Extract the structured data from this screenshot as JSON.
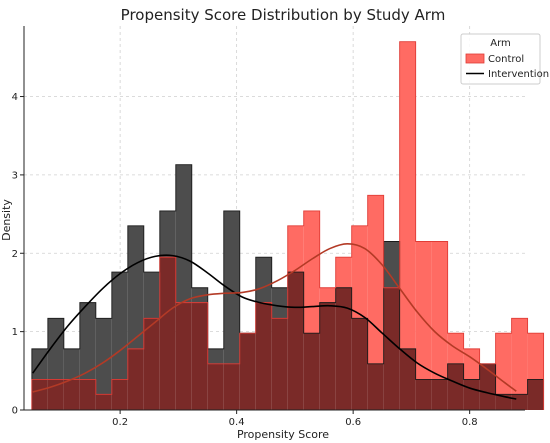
{
  "chart_data": {
    "type": "histogram",
    "title": "Propensity Score Distribution by Study Arm",
    "xlabel": "Propensity Score",
    "ylabel": "Density",
    "xlim": [
      0.035,
      0.895
    ],
    "ylim": [
      0,
      4.9
    ],
    "x_ticks": [
      0.2,
      0.4,
      0.6,
      0.8
    ],
    "y_ticks": [
      0,
      1,
      2,
      3,
      4
    ],
    "grid": true,
    "legend": {
      "title": "Arm",
      "placement": "top-right",
      "entries": [
        {
          "label": "Control",
          "kind": "patch"
        },
        {
          "label": "Intervention",
          "kind": "line"
        }
      ]
    },
    "bin_start": 0.0485,
    "bin_width": 0.02745,
    "series": [
      {
        "name": "Control",
        "color": "#ff6b63",
        "edge": "#e03c36",
        "kde_color": "#b33a26",
        "values": [
          0.39,
          0.39,
          0.39,
          0.39,
          0.2,
          0.39,
          0.78,
          1.17,
          1.95,
          1.37,
          1.37,
          0.59,
          0.59,
          0.98,
          1.37,
          1.17,
          2.35,
          2.54,
          1.56,
          1.95,
          2.35,
          2.74,
          1.56,
          4.7,
          2.15,
          2.15,
          0.98,
          0.78,
          0.59,
          0.98,
          1.17,
          0.98
        ]
      },
      {
        "name": "Intervention",
        "color": "#4d4d4d",
        "edge": "#1a1a1a",
        "kde_color": "#000000",
        "values": [
          0.78,
          1.17,
          0.78,
          1.37,
          1.17,
          1.76,
          2.35,
          1.76,
          2.54,
          3.13,
          1.56,
          0.78,
          2.54,
          0.98,
          1.95,
          1.56,
          1.76,
          0.98,
          1.37,
          1.56,
          1.17,
          0.59,
          2.15,
          0.78,
          0.39,
          0.39,
          0.59,
          0.39,
          0.59,
          0.2,
          0.2,
          0.39
        ]
      }
    ],
    "overlap_color": "#7a2a28",
    "kde": [
      {
        "name": "Intervention",
        "x": [
          0.05,
          0.08,
          0.11,
          0.14,
          0.17,
          0.2,
          0.23,
          0.26,
          0.29,
          0.32,
          0.35,
          0.38,
          0.41,
          0.44,
          0.47,
          0.5,
          0.53,
          0.56,
          0.59,
          0.62,
          0.65,
          0.68,
          0.71,
          0.74,
          0.77,
          0.8,
          0.83,
          0.86,
          0.88
        ],
        "y": [
          0.47,
          0.78,
          1.07,
          1.32,
          1.55,
          1.74,
          1.88,
          1.96,
          1.97,
          1.9,
          1.75,
          1.58,
          1.44,
          1.37,
          1.33,
          1.31,
          1.32,
          1.33,
          1.3,
          1.18,
          0.98,
          0.78,
          0.6,
          0.47,
          0.37,
          0.28,
          0.22,
          0.17,
          0.14
        ]
      },
      {
        "name": "Control",
        "x": [
          0.05,
          0.08,
          0.11,
          0.14,
          0.17,
          0.2,
          0.23,
          0.26,
          0.29,
          0.32,
          0.35,
          0.38,
          0.41,
          0.44,
          0.47,
          0.5,
          0.53,
          0.56,
          0.59,
          0.62,
          0.65,
          0.68,
          0.71,
          0.74,
          0.77,
          0.8,
          0.83,
          0.86,
          0.88
        ],
        "y": [
          0.23,
          0.29,
          0.37,
          0.47,
          0.6,
          0.76,
          0.94,
          1.12,
          1.3,
          1.42,
          1.47,
          1.49,
          1.5,
          1.55,
          1.65,
          1.78,
          1.93,
          2.06,
          2.12,
          2.06,
          1.85,
          1.55,
          1.25,
          1.0,
          0.82,
          0.68,
          0.52,
          0.35,
          0.24
        ]
      }
    ]
  }
}
